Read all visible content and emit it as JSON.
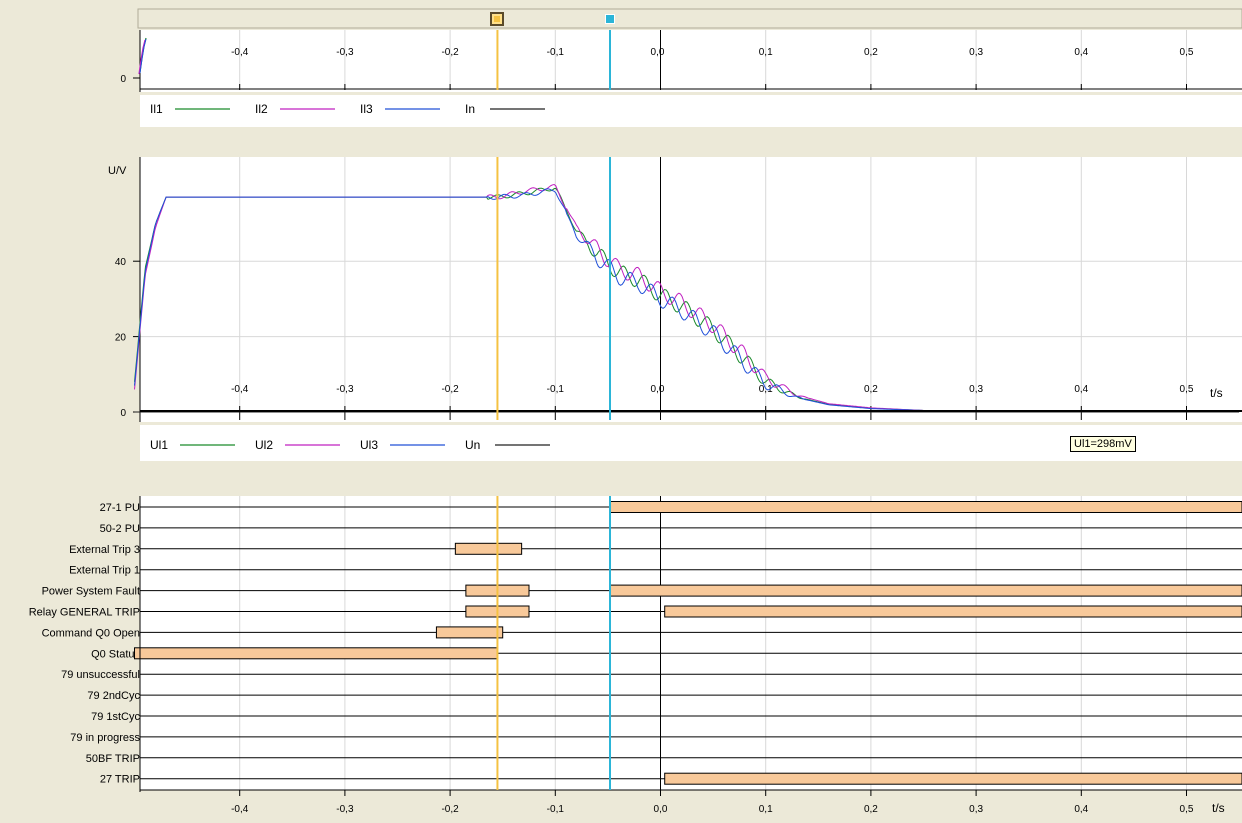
{
  "colors": {
    "background": "#ece9d8",
    "plot_bg": "#ffffff",
    "grid": "#d8d8d8",
    "cursor1": "#f5c242",
    "cursor2": "#2bb5d8",
    "bar_fill": "#f8c99a",
    "ch1": "#1a8a2a",
    "ch2": "#c020c0",
    "ch3": "#2050d8",
    "ch4": "#202020"
  },
  "cursors": {
    "cursor1_t": -0.155,
    "cursor2_t": -0.048,
    "markers": [
      "cursor-1-marker",
      "cursor-2-marker"
    ]
  },
  "time_axis": {
    "label": "t/s",
    "ticks": [
      "-0,4",
      "-0,3",
      "-0,2",
      "-0,1",
      "0,0",
      "0,1",
      "0,2",
      "0,3",
      "0,4",
      "0,5"
    ],
    "values": [
      -0.4,
      -0.3,
      -0.2,
      -0.1,
      0,
      0.1,
      0.2,
      0.3,
      0.4,
      0.5
    ]
  },
  "current_panel": {
    "y_tick": "0",
    "legend": [
      "Il1",
      "Il2",
      "Il3",
      "In"
    ]
  },
  "voltage_panel": {
    "ylabel": "U/V",
    "y_ticks": [
      "40",
      "20",
      "0"
    ],
    "legend": [
      "Ul1",
      "Ul2",
      "Ul3",
      "Un"
    ],
    "tooltip": "Ul1=298mV"
  },
  "chart_data": {
    "type": "line",
    "xlabel": "t/s",
    "ylabel": "U/V",
    "xlim": [
      -0.5,
      0.55
    ],
    "ylim": [
      0,
      60
    ],
    "series": [
      {
        "name": "Ul1",
        "x": [
          -0.5,
          -0.49,
          -0.48,
          -0.47,
          -0.155,
          -0.13,
          -0.1,
          -0.08,
          -0.07,
          -0.06,
          -0.04,
          -0.02,
          0,
          0.02,
          0.05,
          0.08,
          0.1,
          0.13,
          0.16,
          0.2,
          0.25,
          0.3,
          0.55
        ],
        "y": [
          8,
          38,
          50,
          57,
          57,
          58,
          59.5,
          48,
          45,
          42,
          37,
          35,
          31,
          28,
          22,
          14,
          8,
          4,
          2,
          1,
          0.4,
          0.3,
          0.3
        ]
      },
      {
        "name": "Ul2",
        "x": [
          -0.5,
          -0.49,
          -0.48,
          -0.47,
          -0.155,
          -0.13,
          -0.1,
          -0.08,
          -0.07,
          -0.06,
          -0.04,
          -0.02,
          0,
          0.02,
          0.05,
          0.08,
          0.1,
          0.13,
          0.16,
          0.2,
          0.25,
          0.3,
          0.55
        ],
        "y": [
          6,
          36,
          49,
          57,
          57,
          58.5,
          59.8,
          49,
          46,
          43,
          38,
          36,
          32,
          29,
          23,
          15,
          9,
          4.5,
          2.2,
          1.1,
          0.4,
          0.3,
          0.3
        ]
      },
      {
        "name": "Ul3",
        "x": [
          -0.5,
          -0.49,
          -0.48,
          -0.47,
          -0.155,
          -0.13,
          -0.1,
          -0.08,
          -0.07,
          -0.06,
          -0.04,
          -0.02,
          0,
          0.02,
          0.05,
          0.08,
          0.1,
          0.13,
          0.16,
          0.2,
          0.25,
          0.3,
          0.55
        ],
        "y": [
          7,
          37,
          50,
          57,
          57,
          57.5,
          59,
          47,
          44,
          41,
          36,
          34,
          30,
          27,
          21,
          13,
          7.5,
          3.8,
          1.9,
          0.9,
          0.4,
          0.3,
          0.3
        ]
      },
      {
        "name": "Un",
        "x": [
          -0.5,
          0.55
        ],
        "y": [
          0,
          0
        ]
      }
    ]
  },
  "binary_panel": {
    "signals": [
      {
        "name": "27-1 PU",
        "bars": [
          [
            -0.048,
            0.56
          ]
        ]
      },
      {
        "name": "50-2 PU",
        "bars": []
      },
      {
        "name": "External Trip 3",
        "bars": [
          [
            -0.195,
            -0.132
          ]
        ]
      },
      {
        "name": "External Trip 1",
        "bars": []
      },
      {
        "name": "Power System Fault",
        "bars": [
          [
            -0.185,
            -0.125
          ],
          [
            -0.048,
            0.56
          ]
        ]
      },
      {
        "name": "Relay GENERAL TRIP",
        "bars": [
          [
            -0.185,
            -0.125
          ],
          [
            0.004,
            0.56
          ]
        ]
      },
      {
        "name": "Command Q0 Open",
        "bars": [
          [
            -0.213,
            -0.15
          ]
        ]
      },
      {
        "name": "Q0 Status",
        "bars": [
          [
            -0.5,
            -0.155
          ]
        ]
      },
      {
        "name": "79 unsuccessful",
        "bars": []
      },
      {
        "name": "79 2ndCyc",
        "bars": []
      },
      {
        "name": "79 1stCyc",
        "bars": []
      },
      {
        "name": "79 in progress",
        "bars": []
      },
      {
        "name": "50BF TRIP",
        "bars": []
      },
      {
        "name": "27 TRIP",
        "bars": [
          [
            0.004,
            0.56
          ]
        ]
      }
    ]
  }
}
